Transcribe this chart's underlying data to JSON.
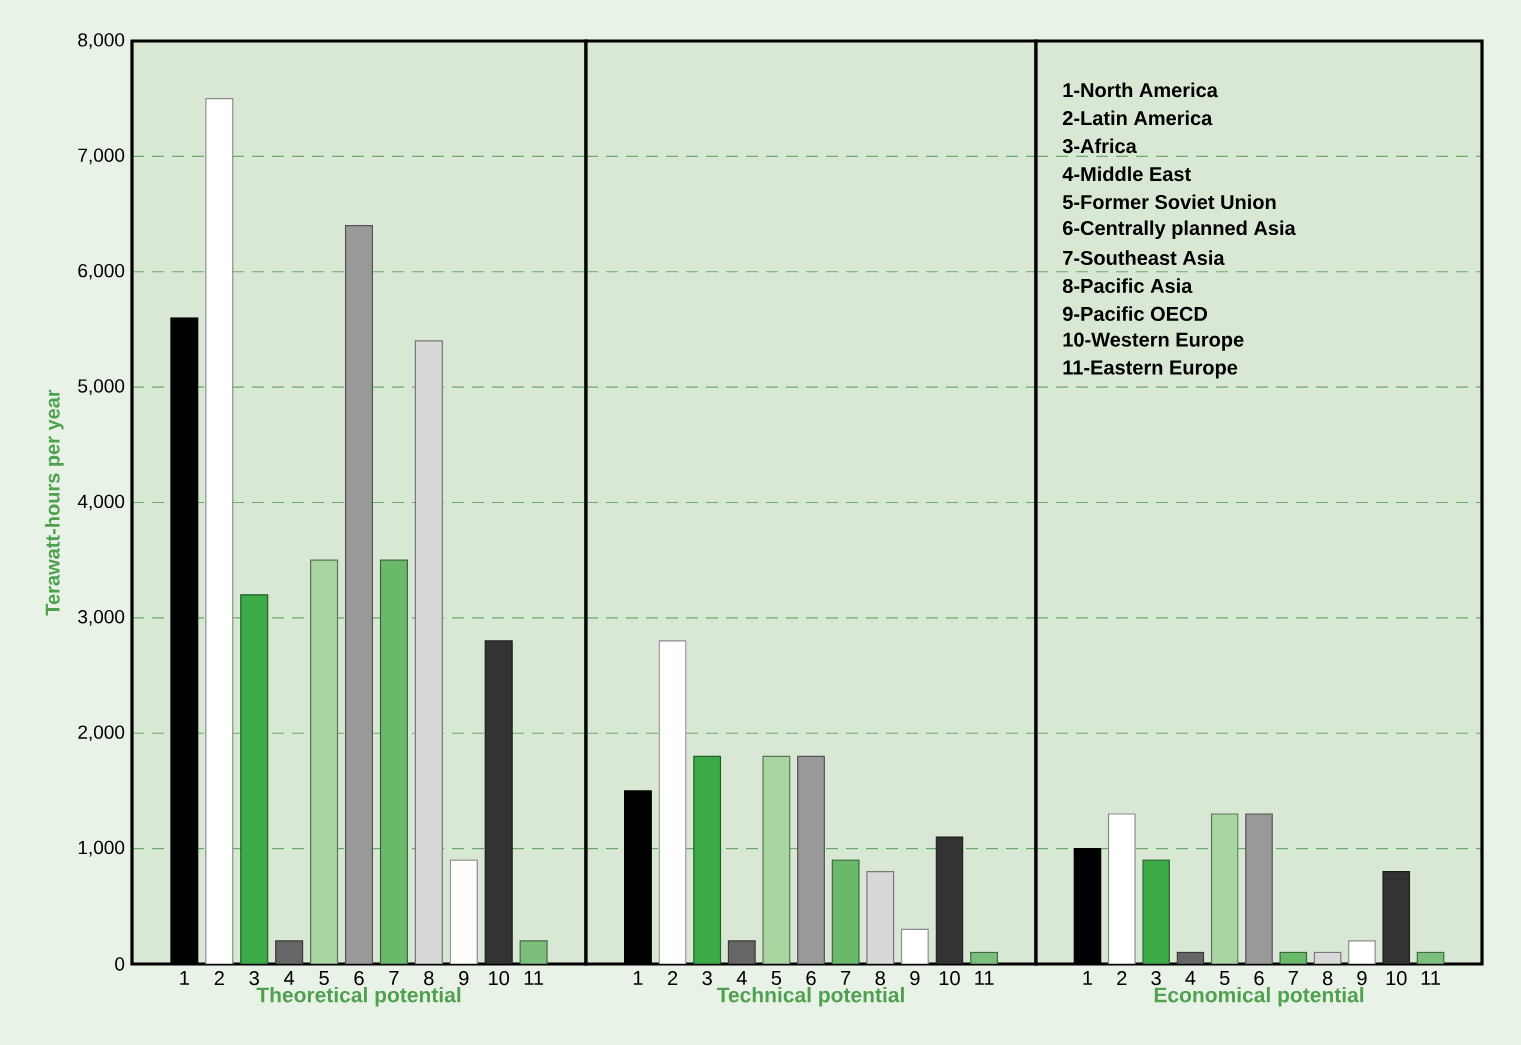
{
  "chart_data": [
    {
      "type": "bar",
      "xlabel": "Theoretical potential",
      "ylabel": "Terawatt-hours per year",
      "categories": [
        "1",
        "2",
        "3",
        "4",
        "5",
        "6",
        "7",
        "8",
        "9",
        "10",
        "11"
      ],
      "values": [
        5600,
        7500,
        3200,
        200,
        3500,
        6400,
        3500,
        5400,
        900,
        2800,
        200
      ],
      "colors": [
        "#000000",
        "#ffffff",
        "#3daa48",
        "#666666",
        "#a8d5a0",
        "#999999",
        "#6ab96a",
        "#d8d8d8",
        "#ffffff",
        "#333333",
        "#7cbf7c"
      ],
      "ylim": [
        0,
        8000
      ],
      "yticks": [
        0,
        {
          "value": 1000,
          "label": "1,000"
        },
        {
          "value": 2000,
          "label": "2,000"
        },
        {
          "value": 3000,
          "label": "3,000"
        },
        {
          "value": 4000,
          "label": "4,000"
        },
        {
          "value": 5000,
          "label": "5,000"
        },
        {
          "value": 6000,
          "label": "6,000"
        },
        {
          "value": 7000,
          "label": "7,000"
        },
        {
          "value": 8000,
          "label": "8,000"
        }
      ],
      "grid": "y"
    },
    {
      "type": "bar",
      "xlabel": "Technical potential",
      "categories": [
        "1",
        "2",
        "3",
        "4",
        "5",
        "6",
        "7",
        "8",
        "9",
        "10",
        "11"
      ],
      "values": [
        1500,
        2800,
        1800,
        200,
        1800,
        1800,
        900,
        800,
        300,
        1100,
        100
      ],
      "colors": [
        "#000000",
        "#ffffff",
        "#3daa48",
        "#666666",
        "#a8d5a0",
        "#999999",
        "#6ab96a",
        "#d8d8d8",
        "#ffffff",
        "#333333",
        "#7cbf7c"
      ],
      "ylim": [
        0,
        8000
      ],
      "yticks": [
        0,
        1000,
        2000,
        3000,
        4000,
        5000,
        6000,
        7000,
        8000
      ],
      "tick_labels": "x",
      "grid": "y"
    },
    {
      "type": "bar",
      "xlabel": "Economical potential",
      "categories": [
        "1",
        "2",
        "3",
        "4",
        "5",
        "6",
        "7",
        "8",
        "9",
        "10",
        "11"
      ],
      "values": [
        1000,
        1300,
        900,
        100,
        1300,
        1300,
        100,
        100,
        200,
        800,
        100
      ],
      "colors": [
        "#000000",
        "#ffffff",
        "#3daa48",
        "#666666",
        "#a8d5a0",
        "#999999",
        "#6ab96a",
        "#d8d8d8",
        "#ffffff",
        "#333333",
        "#7cbf7c"
      ],
      "ylim": [
        0,
        8000
      ],
      "yticks": [
        0,
        1000,
        2000,
        3000,
        4000,
        5000,
        6000,
        7000,
        8000
      ],
      "tick_labels": "x",
      "grid": "y",
      "annotations": [
        "1-North America",
        "2-Latin America",
        "3-Africa",
        "4-Middle East",
        "5-Former Soviet Union",
        "6-Centrally planned Asia",
        "7-Southeast Asia",
        "8-Pacific Asia",
        "9-Pacific OECD",
        "10-Western Europe",
        "11-Eastern Europe"
      ]
    }
  ]
}
